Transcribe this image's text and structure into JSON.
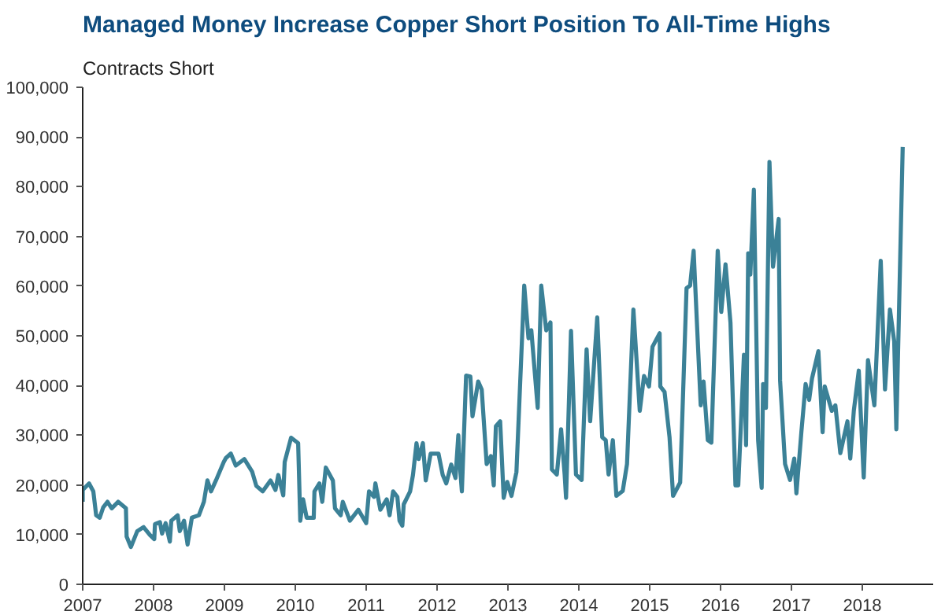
{
  "chart_data": {
    "type": "line",
    "title": "Managed Money Increase Copper Short Position To All-Time Highs",
    "ylabel": "Contracts Short",
    "x": [
      2007.0,
      2007.0,
      2007.09,
      2007.15,
      2007.19,
      2007.24,
      2007.29,
      2007.35,
      2007.41,
      2007.5,
      2007.61,
      2007.62,
      2007.68,
      2007.77,
      2007.86,
      2007.95,
      2008.01,
      2008.02,
      2008.09,
      2008.12,
      2008.17,
      2008.23,
      2008.25,
      2008.34,
      2008.37,
      2008.43,
      2008.48,
      2008.54,
      2008.64,
      2008.71,
      2008.76,
      2008.81,
      2008.88,
      2008.99,
      2009.02,
      2009.09,
      2009.16,
      2009.28,
      2009.39,
      2009.45,
      2009.54,
      2009.65,
      2009.72,
      2009.76,
      2009.83,
      2009.85,
      2009.94,
      2010.04,
      2010.07,
      2010.11,
      2010.16,
      2010.26,
      2010.27,
      2010.34,
      2010.38,
      2010.43,
      2010.53,
      2010.56,
      2010.64,
      2010.67,
      2010.77,
      2010.89,
      2011.0,
      2011.04,
      2011.11,
      2011.13,
      2011.2,
      2011.29,
      2011.33,
      2011.38,
      2011.44,
      2011.47,
      2011.51,
      2011.53,
      2011.62,
      2011.66,
      2011.71,
      2011.74,
      2011.8,
      2011.84,
      2011.91,
      2012.02,
      2012.08,
      2012.13,
      2012.2,
      2012.26,
      2012.3,
      2012.31,
      2012.35,
      2012.41,
      2012.47,
      2012.5,
      2012.58,
      2012.63,
      2012.7,
      2012.76,
      2012.8,
      2012.83,
      2012.89,
      2012.94,
      2012.99,
      2013.05,
      2013.12,
      2013.23,
      2013.29,
      2013.33,
      2013.42,
      2013.47,
      2013.54,
      2013.6,
      2013.62,
      2013.69,
      2013.75,
      2013.8,
      2013.82,
      2013.89,
      2013.96,
      2014.04,
      2014.11,
      2014.16,
      2014.26,
      2014.33,
      2014.38,
      2014.42,
      2014.48,
      2014.53,
      2014.62,
      2014.68,
      2014.77,
      2014.86,
      2014.92,
      2014.99,
      2015.04,
      2015.14,
      2015.15,
      2015.21,
      2015.28,
      2015.33,
      2015.43,
      2015.52,
      2015.57,
      2015.62,
      2015.72,
      2015.76,
      2015.82,
      2015.87,
      2015.96,
      2016.01,
      2016.07,
      2016.14,
      2016.21,
      2016.25,
      2016.33,
      2016.36,
      2016.39,
      2016.42,
      2016.47,
      2016.53,
      2016.58,
      2016.6,
      2016.64,
      2016.69,
      2016.74,
      2016.82,
      2016.84,
      2016.91,
      2016.98,
      2017.04,
      2017.07,
      2017.14,
      2017.2,
      2017.25,
      2017.29,
      2017.38,
      2017.44,
      2017.47,
      2017.57,
      2017.62,
      2017.69,
      2017.79,
      2017.83,
      2017.88,
      2017.95,
      2018.02,
      2018.08,
      2018.17,
      2018.26,
      2018.32,
      2018.39,
      2018.45,
      2018.48,
      2018.57
    ],
    "series": [
      {
        "color": "#3b8197",
        "values": [
          16600,
          19000,
          20300,
          18700,
          13900,
          13400,
          15500,
          16600,
          15300,
          16600,
          15300,
          9600,
          7500,
          10700,
          11500,
          9900,
          9100,
          12100,
          12500,
          10200,
          12300,
          8600,
          12800,
          13900,
          10700,
          12800,
          8000,
          13400,
          13900,
          16600,
          20900,
          18700,
          20900,
          24600,
          25400,
          26300,
          23900,
          25200,
          22700,
          19800,
          18700,
          20900,
          19000,
          22000,
          17900,
          24600,
          29500,
          28400,
          12800,
          17100,
          13400,
          13400,
          18700,
          20300,
          16600,
          23500,
          20900,
          15300,
          13900,
          16600,
          12800,
          15000,
          12300,
          18700,
          17600,
          20300,
          15000,
          17100,
          13900,
          18700,
          17600,
          12800,
          11800,
          16100,
          18700,
          22000,
          28400,
          25200,
          28400,
          20900,
          26300,
          26300,
          22000,
          20300,
          24100,
          21400,
          30000,
          26300,
          18700,
          42000,
          41800,
          33800,
          40800,
          39200,
          24200,
          25800,
          19900,
          31800,
          32800,
          17400,
          20600,
          17800,
          22600,
          60100,
          49500,
          51100,
          35500,
          60100,
          51100,
          52700,
          23100,
          22100,
          31200,
          22100,
          17400,
          51000,
          22100,
          21000,
          47300,
          32800,
          53700,
          29600,
          29000,
          22100,
          29000,
          17800,
          18800,
          24200,
          55300,
          34900,
          41900,
          39800,
          47800,
          50500,
          39800,
          38700,
          29600,
          17800,
          20500,
          59600,
          60100,
          67100,
          36000,
          40800,
          29000,
          28500,
          67100,
          54800,
          64400,
          52600,
          19900,
          19900,
          46200,
          28000,
          66600,
          62300,
          79400,
          29000,
          19400,
          40300,
          35500,
          85000,
          63900,
          73500,
          41000,
          24200,
          21000,
          25300,
          18300,
          30600,
          40300,
          37100,
          41400,
          46900,
          30600,
          39800,
          34900,
          36000,
          26400,
          32800,
          25300,
          34900,
          43000,
          21500,
          45100,
          36000,
          65100,
          39200,
          55300,
          48900,
          31200,
          88000
        ]
      }
    ],
    "xlim": [
      2007,
      2019
    ],
    "xticks": [
      2007,
      2008,
      2009,
      2010,
      2011,
      2012,
      2013,
      2014,
      2015,
      2016,
      2017,
      2018
    ],
    "ylim": [
      0,
      100000
    ],
    "yticks": [
      0,
      {
        "value": 10000,
        "label": "10,000"
      },
      {
        "value": 20000,
        "label": "20,000"
      },
      {
        "value": 30000,
        "label": "30,000"
      },
      {
        "value": 40000,
        "label": "40,000"
      },
      {
        "value": 50000,
        "label": "50,000"
      },
      {
        "value": 60000,
        "label": "60,000"
      },
      {
        "value": 70000,
        "label": "70,000"
      },
      {
        "value": 80000,
        "label": "80,000"
      },
      {
        "value": 90000,
        "label": "90,000"
      },
      {
        "value": 100000,
        "label": "100,000"
      }
    ],
    "grid": false
  }
}
